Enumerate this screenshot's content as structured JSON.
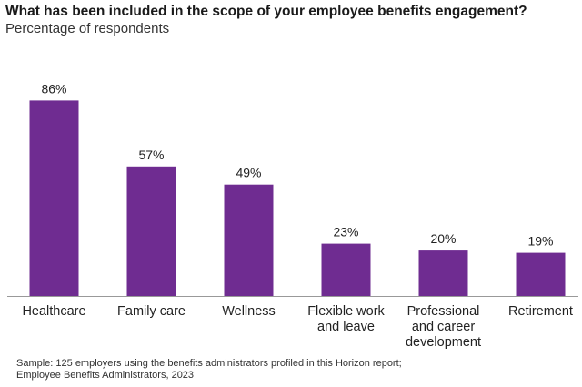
{
  "header": {
    "title": "What has been included in the scope of your employee benefits engagement?",
    "subtitle": "Percentage of respondents"
  },
  "footnote": {
    "line1": "Sample: 125 employers using the benefits administrators profiled in this Horizon report;",
    "line2": "Employee Benefits Administrators, 2023"
  },
  "chart_data": {
    "type": "bar",
    "title": "What has been included in the scope of your employee benefits engagement?",
    "subtitle": "Percentage of respondents",
    "categories": [
      "Healthcare",
      "Family care",
      "Wellness",
      "Flexible work and leave",
      "Professional and career development",
      "Retirement"
    ],
    "category_lines": [
      [
        "Healthcare"
      ],
      [
        "Family care"
      ],
      [
        "Wellness"
      ],
      [
        "Flexible work",
        "and leave"
      ],
      [
        "Professional",
        "and career",
        "development"
      ],
      [
        "Retirement"
      ]
    ],
    "values": [
      86,
      57,
      49,
      23,
      20,
      19
    ],
    "data_labels": [
      "86%",
      "57%",
      "49%",
      "23%",
      "20%",
      "19%"
    ],
    "unit": "%",
    "ylim": [
      0,
      100
    ],
    "grid": false,
    "legend": "none",
    "bar_color": "#6f2c91",
    "axis_color": "#999999"
  }
}
